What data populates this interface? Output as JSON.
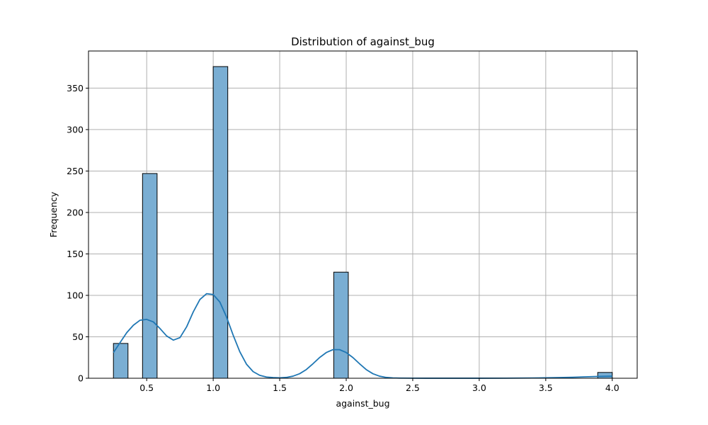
{
  "chart_data": {
    "type": "bar",
    "subtype": "histogram_with_kde",
    "title": "Distribution of against_bug",
    "xlabel": "against_bug",
    "ylabel": "Frequency",
    "xlim": [
      0.0625,
      4.1875
    ],
    "ylim": [
      0,
      394.8
    ],
    "xticks": [
      0.5,
      1.0,
      1.5,
      2.0,
      2.5,
      3.0,
      3.5,
      4.0
    ],
    "xtick_labels": [
      "0.5",
      "1.0",
      "1.5",
      "2.0",
      "2.5",
      "3.0",
      "3.5",
      "4.0"
    ],
    "yticks": [
      0,
      50,
      100,
      150,
      200,
      250,
      300,
      350
    ],
    "ytick_labels": [
      "0",
      "50",
      "100",
      "150",
      "200",
      "250",
      "300",
      "350"
    ],
    "grid": true,
    "bars": [
      {
        "x0": 0.25,
        "x1": 0.359375,
        "value": 42
      },
      {
        "x0": 0.46875,
        "x1": 0.578125,
        "value": 247
      },
      {
        "x0": 1.0,
        "x1": 1.109375,
        "value": 376
      },
      {
        "x0": 1.90625,
        "x1": 2.015625,
        "value": 128
      },
      {
        "x0": 3.890625,
        "x1": 4.0,
        "value": 7
      }
    ],
    "kde": {
      "x": [
        0.25,
        0.3,
        0.35,
        0.4,
        0.45,
        0.5,
        0.55,
        0.6,
        0.65,
        0.7,
        0.75,
        0.8,
        0.85,
        0.9,
        0.95,
        1.0,
        1.05,
        1.1,
        1.15,
        1.2,
        1.25,
        1.3,
        1.35,
        1.4,
        1.45,
        1.5,
        1.55,
        1.6,
        1.65,
        1.7,
        1.75,
        1.8,
        1.85,
        1.9,
        1.95,
        2.0,
        2.05,
        2.1,
        2.15,
        2.2,
        2.25,
        2.3,
        2.35,
        2.4,
        2.5,
        2.6,
        2.8,
        3.0,
        3.2,
        3.4,
        3.6,
        3.7,
        3.8,
        3.9,
        4.0
      ],
      "y": [
        31,
        43,
        55,
        64,
        70,
        71,
        68,
        60,
        51,
        46,
        49,
        62,
        80,
        95,
        102,
        101,
        92,
        74,
        52,
        32,
        17,
        8,
        3.5,
        1.5,
        0.8,
        0.5,
        1.0,
        2.5,
        5.5,
        10.5,
        17.5,
        25,
        31,
        34.5,
        34.5,
        31,
        25,
        17.5,
        10.5,
        5.5,
        2.5,
        1.0,
        0.4,
        0.2,
        0.1,
        0.05,
        0.05,
        0.05,
        0.1,
        0.3,
        0.8,
        1.2,
        1.7,
        2.2,
        2.5
      ]
    },
    "colors": {
      "bar_fill": "#7aaed3",
      "bar_edge": "#000000",
      "kde_line": "#1f77b4",
      "grid": "#b0b0b0"
    }
  }
}
